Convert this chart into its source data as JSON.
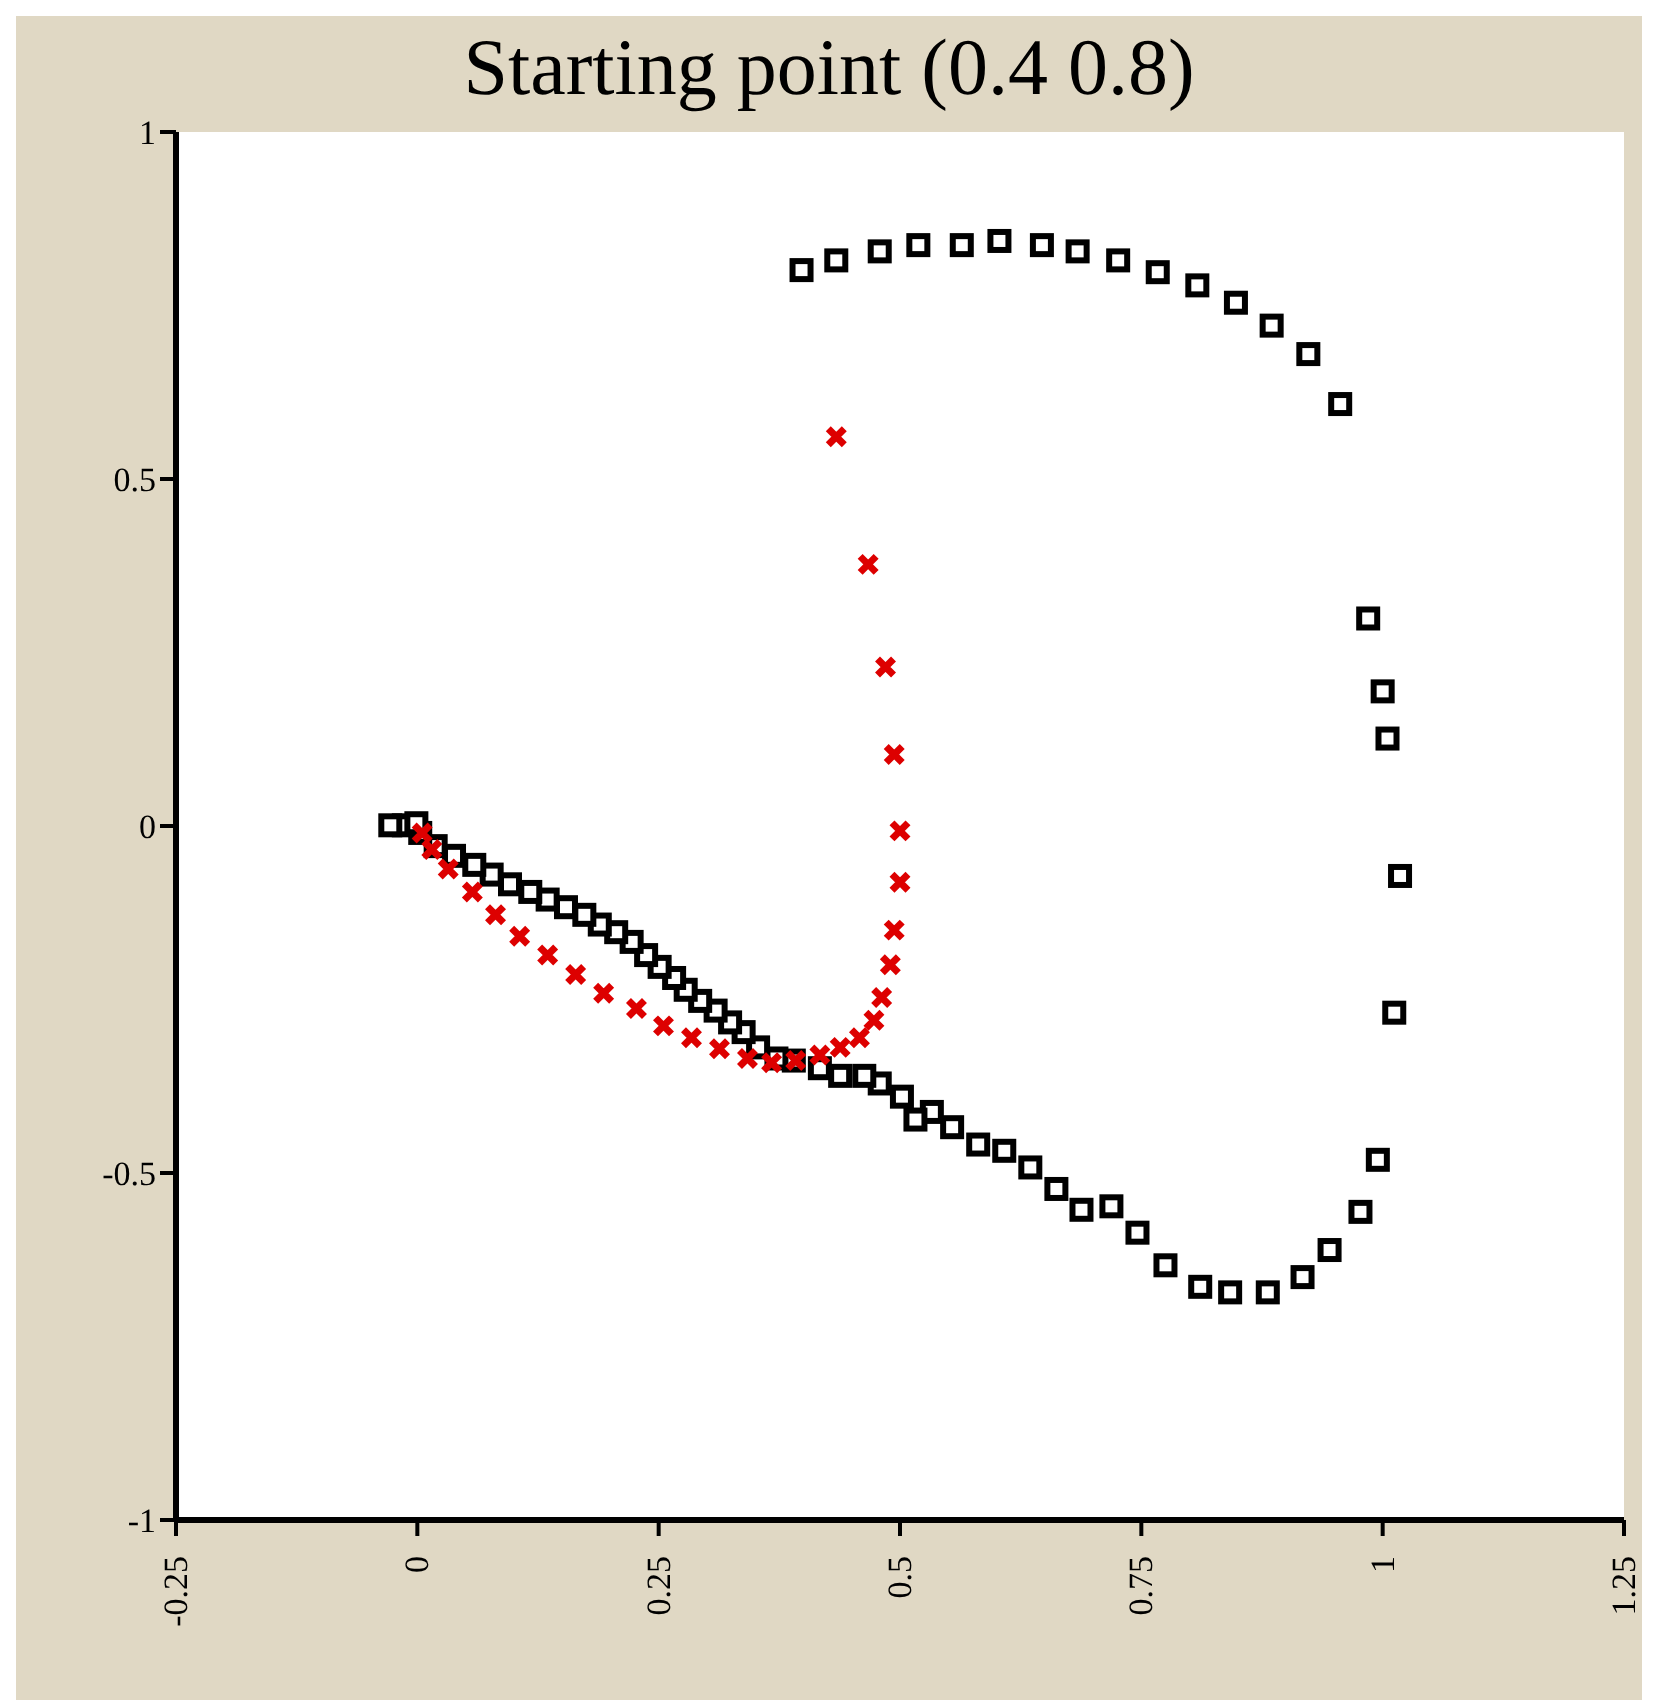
{
  "chart_data": {
    "type": "scatter",
    "title": "Starting point (0.4 0.8)",
    "xlim": [
      -0.25,
      1.25
    ],
    "xticks": [
      -0.25,
      0,
      0.25,
      0.5,
      0.75,
      1,
      1.25
    ],
    "ylim": [
      -1,
      1
    ],
    "yticks": [
      -1,
      -0.5,
      0,
      0.5,
      1
    ],
    "grid": false,
    "legend": false,
    "series": [
      {
        "color": "#dd0000",
        "marker": "cross",
        "x": [
          0.434,
          0.467,
          0.485,
          0.494,
          0.5,
          0.5,
          0.494,
          0.49,
          0.481,
          0.473,
          0.458,
          0.438,
          0.417,
          0.392,
          0.367,
          0.342,
          0.313,
          0.284,
          0.255,
          0.227,
          0.193,
          0.164,
          0.135,
          0.106,
          0.081,
          0.057,
          0.032,
          0.015,
          0.005
        ],
        "values": [
          0.561,
          0.377,
          0.229,
          0.103,
          -0.007,
          -0.081,
          -0.15,
          -0.2,
          -0.247,
          -0.28,
          -0.305,
          -0.319,
          -0.33,
          -0.338,
          -0.341,
          -0.335,
          -0.321,
          -0.305,
          -0.288,
          -0.263,
          -0.241,
          -0.214,
          -0.186,
          -0.159,
          -0.128,
          -0.095,
          -0.062,
          -0.034,
          -0.01
        ]
      },
      {
        "color": "#000000",
        "marker": "square",
        "x": [
          0.398,
          0.434,
          0.479,
          0.519,
          0.564,
          0.603,
          0.647,
          0.684,
          0.726,
          0.767,
          0.808,
          0.848,
          0.885,
          0.923,
          0.956,
          0.985,
          1.0,
          1.005,
          1.018,
          1.012,
          0.995,
          0.977,
          0.945,
          0.917,
          0.881,
          0.842,
          0.811,
          0.775,
          0.746,
          0.719,
          0.688,
          0.662,
          0.635,
          0.608,
          0.581,
          0.554,
          0.533,
          0.516,
          0.502,
          0.479,
          0.463,
          0.438,
          0.417,
          0.39,
          0.372,
          0.353,
          0.338,
          0.324,
          0.309,
          0.293,
          0.278,
          0.266,
          0.251,
          0.237,
          0.222,
          0.206,
          0.189,
          0.173,
          0.154,
          0.135,
          0.117,
          0.096,
          0.077,
          0.059,
          0.038,
          0.019,
          0.003,
          -0.014,
          -0.028,
          -0.001
        ],
        "values": [
          0.801,
          0.815,
          0.828,
          0.837,
          0.837,
          0.843,
          0.837,
          0.828,
          0.815,
          0.798,
          0.779,
          0.754,
          0.721,
          0.68,
          0.608,
          0.299,
          0.194,
          0.126,
          -0.072,
          -0.269,
          -0.481,
          -0.556,
          -0.611,
          -0.65,
          -0.672,
          -0.672,
          -0.664,
          -0.633,
          -0.586,
          -0.548,
          -0.553,
          -0.523,
          -0.492,
          -0.468,
          -0.459,
          -0.434,
          -0.412,
          -0.423,
          -0.39,
          -0.371,
          -0.36,
          -0.36,
          -0.349,
          -0.338,
          -0.335,
          -0.319,
          -0.297,
          -0.283,
          -0.266,
          -0.252,
          -0.236,
          -0.219,
          -0.203,
          -0.186,
          -0.167,
          -0.153,
          -0.142,
          -0.128,
          -0.117,
          -0.106,
          -0.095,
          -0.084,
          -0.07,
          -0.056,
          -0.043,
          -0.029,
          -0.01,
          0.001,
          0.001,
          0.004
        ]
      }
    ]
  }
}
